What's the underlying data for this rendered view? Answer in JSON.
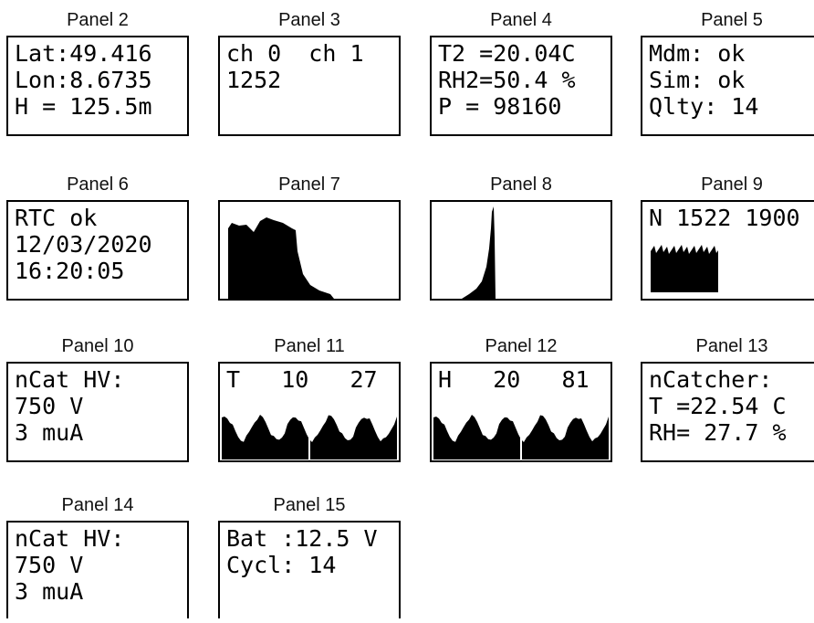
{
  "panels": [
    {
      "title": "Panel 2",
      "lines": [
        "Lat:49.416",
        "Lon:8.6735",
        "H = 125.5m"
      ]
    },
    {
      "title": "Panel 3",
      "lines": [
        "ch 0  ch 1",
        "1252"
      ]
    },
    {
      "title": "Panel 4",
      "lines": [
        "T2 =20.04C",
        "RH2=50.4 %",
        "P = 98160"
      ]
    },
    {
      "title": "Panel 5",
      "lines": [
        "Mdm: ok",
        "Sim: ok",
        "Qlty: 14"
      ]
    },
    {
      "title": "Panel 6",
      "lines": [
        "RTC ok",
        "12/03/2020",
        "16:20:05"
      ]
    },
    {
      "title": "Panel 7"
    },
    {
      "title": "Panel 8"
    },
    {
      "title": "Panel 9",
      "lines": [
        "N 1522 1900"
      ]
    },
    {
      "title": "Panel 10",
      "lines": [
        "nCat HV:",
        "750 V",
        "3 muA"
      ]
    },
    {
      "title": "Panel 11",
      "lines": [
        "T   10   27"
      ]
    },
    {
      "title": "Panel 12",
      "lines": [
        "H   20   81"
      ]
    },
    {
      "title": "Panel 13",
      "lines": [
        "nCatcher:",
        "T =22.54 C",
        "RH= 27.7 %"
      ]
    },
    {
      "title": "Panel 14",
      "lines": [
        "nCat HV:",
        "750 V",
        "3 muA"
      ]
    },
    {
      "title": "Panel 15",
      "lines": [
        "Bat :12.5 V",
        "Cycl: 14"
      ]
    }
  ]
}
